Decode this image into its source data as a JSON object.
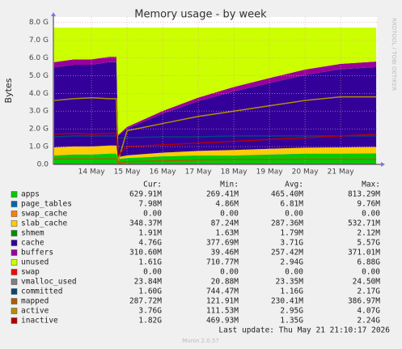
{
  "chart_data": {
    "type": "area",
    "title": "Memory usage - by week",
    "y_label": "Bytes",
    "watermark": "RRDTOOL / TOBI OETIKER",
    "x": [
      12.95,
      13.5,
      14.0,
      14.5,
      14.7,
      14.75,
      15.0,
      16.0,
      17.0,
      18.0,
      19.0,
      20.0,
      21.0,
      22.0
    ],
    "xlim": [
      12.93,
      22.02
    ],
    "xticks": [
      {
        "value": 14,
        "label": "14 May"
      },
      {
        "value": 15,
        "label": "15 May"
      },
      {
        "value": 16,
        "label": "16 May"
      },
      {
        "value": 17,
        "label": "17 May"
      },
      {
        "value": 18,
        "label": "18 May"
      },
      {
        "value": 19,
        "label": "19 May"
      },
      {
        "value": 20,
        "label": "20 May"
      },
      {
        "value": 21,
        "label": "21 May"
      }
    ],
    "ylim": [
      0,
      8.3
    ],
    "yticks": [
      {
        "value": 0,
        "label": "0.0"
      },
      {
        "value": 1,
        "label": "1.0 G"
      },
      {
        "value": 2,
        "label": "2.0 G"
      },
      {
        "value": 3,
        "label": "3.0 G"
      },
      {
        "value": 4,
        "label": "4.0 G"
      },
      {
        "value": 5,
        "label": "5.0 G"
      },
      {
        "value": 6,
        "label": "6.0 G"
      },
      {
        "value": 7,
        "label": "7.0 G"
      },
      {
        "value": 8,
        "label": "8.0 G"
      }
    ],
    "grid": true,
    "stat_headers": [
      "Cur:",
      "Min:",
      "Avg:",
      "Max:"
    ],
    "series": [
      {
        "name": "apps",
        "color": "#00cc00",
        "style": "stack",
        "values": [
          0.5,
          0.55,
          0.55,
          0.6,
          0.6,
          0.3,
          0.35,
          0.45,
          0.5,
          0.5,
          0.55,
          0.6,
          0.6,
          0.62
        ],
        "stats": [
          "629.91M",
          "269.41M",
          "465.40M",
          "813.29M"
        ]
      },
      {
        "name": "page_tables",
        "color": "#0066b3",
        "style": "stack",
        "values": [
          0.008,
          0.008,
          0.008,
          0.008,
          0.008,
          0.008,
          0.008,
          0.008,
          0.008,
          0.008,
          0.008,
          0.008,
          0.008,
          0.008
        ],
        "stats": [
          "7.98M",
          "4.86M",
          "6.81M",
          "9.76M"
        ]
      },
      {
        "name": "swap_cache",
        "color": "#ff8000",
        "style": "stack",
        "values": [
          0,
          0,
          0,
          0,
          0,
          0,
          0,
          0,
          0,
          0,
          0,
          0,
          0,
          0
        ],
        "stats": [
          "0.00",
          "0.00",
          "0.00",
          "0.00"
        ]
      },
      {
        "name": "slab_cache",
        "color": "#ffcc00",
        "style": "stack",
        "values": [
          0.45,
          0.45,
          0.45,
          0.45,
          0.45,
          0.1,
          0.15,
          0.2,
          0.25,
          0.3,
          0.32,
          0.33,
          0.35,
          0.35
        ],
        "stats": [
          "348.37M",
          "87.24M",
          "287.36M",
          "532.71M"
        ]
      },
      {
        "name": "shmem",
        "color": "#008f00",
        "style": "stack",
        "values": [
          0.002,
          0.002,
          0.002,
          0.002,
          0.002,
          0.002,
          0.002,
          0.002,
          0.002,
          0.002,
          0.002,
          0.002,
          0.002,
          0.002
        ],
        "stats": [
          "1.91M",
          "1.63M",
          "1.79M",
          "2.12M"
        ]
      },
      {
        "name": "cache",
        "color": "#330099",
        "style": "stack",
        "values": [
          4.5,
          4.6,
          4.6,
          4.7,
          4.7,
          1.2,
          1.5,
          2.2,
          2.8,
          3.3,
          3.7,
          4.1,
          4.4,
          4.5
        ],
        "stats": [
          "4.76G",
          "377.69M",
          "3.71G",
          "5.57G"
        ]
      },
      {
        "name": "buffers",
        "color": "#990099",
        "style": "stack",
        "values": [
          0.3,
          0.3,
          0.3,
          0.3,
          0.3,
          0.05,
          0.1,
          0.15,
          0.2,
          0.25,
          0.28,
          0.3,
          0.3,
          0.31
        ],
        "stats": [
          "310.60M",
          "39.46M",
          "257.42M",
          "371.01M"
        ]
      },
      {
        "name": "unused",
        "color": "#ccff00",
        "style": "stack",
        "values": [
          1.94,
          1.79,
          1.79,
          1.64,
          1.64,
          6.04,
          5.59,
          4.69,
          3.94,
          3.34,
          2.84,
          2.36,
          2.04,
          1.91
        ],
        "stats": [
          "1.61G",
          "710.77M",
          "2.94G",
          "6.88G"
        ]
      },
      {
        "name": "swap",
        "color": "#ff0000",
        "style": "stack",
        "values": [
          0,
          0,
          0,
          0,
          0,
          0,
          0,
          0,
          0,
          0,
          0,
          0,
          0,
          0
        ],
        "stats": [
          "0.00",
          "0.00",
          "0.00",
          "0.00"
        ]
      },
      {
        "name": "vmalloc_used",
        "color": "#808080",
        "style": "line",
        "values": [
          0.024,
          0.024,
          0.024,
          0.024,
          0.024,
          0.024,
          0.024,
          0.024,
          0.024,
          0.024,
          0.024,
          0.024,
          0.024,
          0.024
        ],
        "stats": [
          "23.84M",
          "20.88M",
          "23.35M",
          "24.50M"
        ]
      },
      {
        "name": "committed",
        "color": "#00487d",
        "style": "line",
        "values": [
          1.55,
          1.6,
          1.6,
          1.6,
          1.6,
          1.5,
          1.5,
          1.55,
          1.55,
          1.6,
          1.6,
          1.6,
          1.6,
          1.6
        ],
        "stats": [
          "1.60G",
          "744.47M",
          "1.16G",
          "2.17G"
        ]
      },
      {
        "name": "mapped",
        "color": "#b35a00",
        "style": "line",
        "values": [
          0.3,
          0.3,
          0.3,
          0.3,
          0.3,
          0.1,
          0.15,
          0.2,
          0.25,
          0.28,
          0.28,
          0.29,
          0.29,
          0.29
        ],
        "stats": [
          "287.72M",
          "121.91M",
          "230.41M",
          "386.97M"
        ]
      },
      {
        "name": "active",
        "color": "#b38f00",
        "style": "line",
        "values": [
          3.6,
          3.7,
          3.75,
          3.7,
          3.7,
          0.2,
          1.9,
          2.3,
          2.7,
          3.0,
          3.3,
          3.6,
          3.8,
          3.8
        ],
        "stats": [
          "3.76G",
          "111.53M",
          "2.95G",
          "4.07G"
        ]
      },
      {
        "name": "inactive",
        "color": "#b30000",
        "style": "line",
        "values": [
          1.7,
          1.75,
          1.7,
          1.75,
          1.75,
          0.5,
          1.0,
          1.1,
          1.2,
          1.3,
          1.4,
          1.5,
          1.6,
          1.7
        ],
        "stats": [
          "1.82G",
          "469.93M",
          "1.35G",
          "2.24G"
        ]
      }
    ],
    "last_update": "Last update: Thu May 21 21:10:17 2026",
    "footer": "Munin 2.0.57"
  }
}
